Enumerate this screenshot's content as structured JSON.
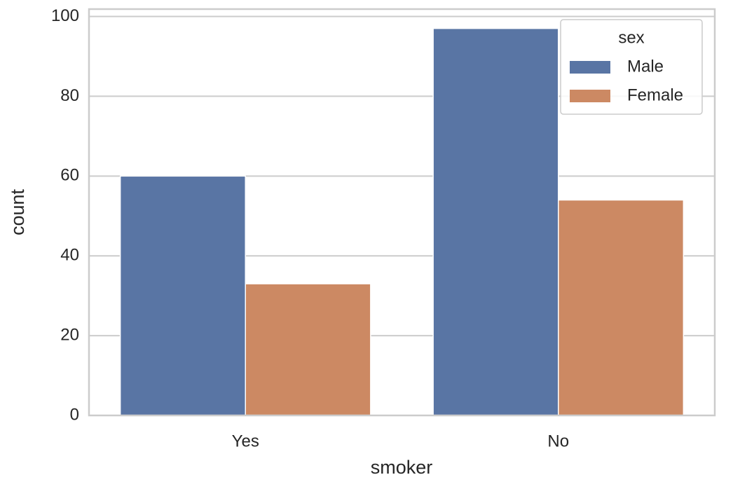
{
  "chart_data": {
    "type": "bar",
    "x_label": "smoker",
    "y_label": "count",
    "categories": [
      "Yes",
      "No"
    ],
    "series": [
      {
        "name": "Male",
        "color": "#5975a4",
        "values": [
          60,
          97
        ]
      },
      {
        "name": "Female",
        "color": "#cc8963",
        "values": [
          33,
          54
        ]
      }
    ],
    "legend_title": "sex",
    "legend": "upper right",
    "ylim": [
      0,
      101.85
    ],
    "yticks": [
      0,
      20,
      40,
      60,
      80,
      100
    ],
    "grid": true
  }
}
